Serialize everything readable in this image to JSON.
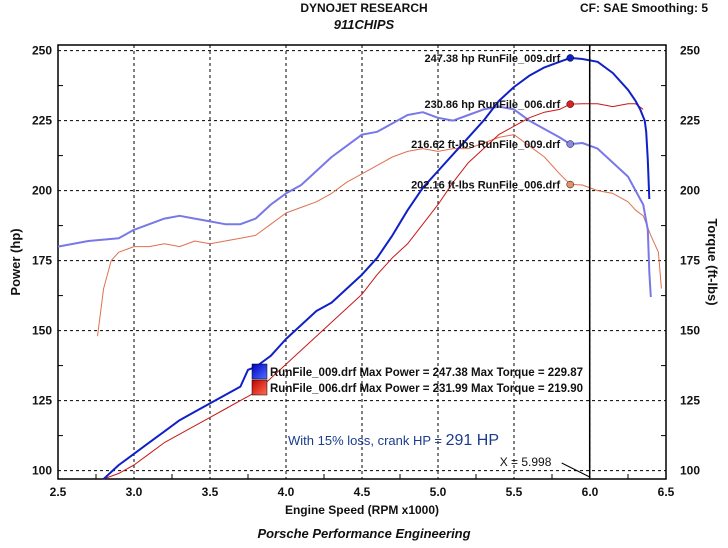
{
  "header": {
    "title": "DYNOJET RESEARCH",
    "subtitle": "911CHIPS",
    "right": "CF: SAE   Smoothing: 5"
  },
  "footer": {
    "text": "Porsche Performance Engineering"
  },
  "chart_data": {
    "type": "line",
    "xlabel": "Engine Speed (RPM x1000)",
    "ylabel_left": "Power (hp)",
    "ylabel_right": "Torque (ft-lbs)",
    "xlim": [
      2.5,
      6.5
    ],
    "ylim": [
      97,
      252
    ],
    "x_ticks": [
      2.5,
      3.0,
      3.5,
      4.0,
      4.5,
      5.0,
      5.5,
      6.0,
      6.5
    ],
    "x_tick_labels": [
      "2.5",
      "3.0",
      "3.5",
      "4.0",
      "4.5",
      "5.0",
      "5.5",
      "6.0",
      "6.5"
    ],
    "y_ticks": [
      100,
      125,
      150,
      175,
      200,
      225,
      250
    ],
    "y_tick_labels": [
      "100",
      "125",
      "150",
      "175",
      "200",
      "225",
      "250"
    ],
    "grid": true,
    "series": [
      {
        "name": "RunFile_009.drf",
        "kind": "power",
        "color": "#1020c8",
        "width": 2,
        "points": [
          [
            2.8,
            97
          ],
          [
            2.9,
            102
          ],
          [
            3.0,
            106
          ],
          [
            3.1,
            110
          ],
          [
            3.2,
            114
          ],
          [
            3.3,
            118
          ],
          [
            3.4,
            121
          ],
          [
            3.5,
            124
          ],
          [
            3.6,
            127
          ],
          [
            3.7,
            130
          ],
          [
            3.75,
            136
          ],
          [
            3.8,
            137
          ],
          [
            3.9,
            141
          ],
          [
            4.0,
            147
          ],
          [
            4.1,
            152
          ],
          [
            4.2,
            157
          ],
          [
            4.3,
            160
          ],
          [
            4.4,
            165
          ],
          [
            4.5,
            170
          ],
          [
            4.6,
            176
          ],
          [
            4.7,
            184
          ],
          [
            4.8,
            193
          ],
          [
            4.9,
            201
          ],
          [
            5.0,
            207
          ],
          [
            5.1,
            213
          ],
          [
            5.2,
            219
          ],
          [
            5.3,
            225
          ],
          [
            5.4,
            232
          ],
          [
            5.5,
            237
          ],
          [
            5.6,
            241
          ],
          [
            5.7,
            244
          ],
          [
            5.8,
            246
          ],
          [
            5.87,
            247.4
          ],
          [
            5.95,
            247
          ],
          [
            6.05,
            246
          ],
          [
            6.15,
            242
          ],
          [
            6.25,
            236
          ],
          [
            6.3,
            232
          ],
          [
            6.33,
            229
          ],
          [
            6.36,
            225
          ],
          [
            6.37,
            221
          ],
          [
            6.38,
            211
          ],
          [
            6.39,
            197
          ]
        ]
      },
      {
        "name": "RunFile_006.drf",
        "kind": "power",
        "color": "#c81818",
        "width": 1,
        "points": [
          [
            2.8,
            97
          ],
          [
            2.9,
            99
          ],
          [
            3.0,
            102
          ],
          [
            3.1,
            106
          ],
          [
            3.2,
            110
          ],
          [
            3.3,
            113
          ],
          [
            3.4,
            116
          ],
          [
            3.5,
            119
          ],
          [
            3.6,
            122
          ],
          [
            3.7,
            125
          ],
          [
            3.8,
            128
          ],
          [
            3.9,
            133
          ],
          [
            4.0,
            138
          ],
          [
            4.1,
            143
          ],
          [
            4.2,
            148
          ],
          [
            4.3,
            153
          ],
          [
            4.4,
            158
          ],
          [
            4.5,
            163
          ],
          [
            4.6,
            170
          ],
          [
            4.7,
            176
          ],
          [
            4.8,
            181
          ],
          [
            4.9,
            188
          ],
          [
            5.0,
            195
          ],
          [
            5.1,
            203
          ],
          [
            5.2,
            210
          ],
          [
            5.3,
            215
          ],
          [
            5.4,
            220
          ],
          [
            5.5,
            223
          ],
          [
            5.6,
            226
          ],
          [
            5.7,
            228
          ],
          [
            5.8,
            229
          ],
          [
            5.87,
            230.9
          ],
          [
            5.95,
            231
          ],
          [
            6.05,
            231
          ],
          [
            6.15,
            230
          ],
          [
            6.25,
            231
          ],
          [
            6.3,
            231
          ],
          [
            6.35,
            229
          ]
        ]
      },
      {
        "name": "RunFile_009.drf",
        "kind": "torque",
        "color": "#7878e8",
        "width": 2,
        "points": [
          [
            2.5,
            180
          ],
          [
            2.7,
            182
          ],
          [
            2.9,
            183
          ],
          [
            3.0,
            186
          ],
          [
            3.1,
            188
          ],
          [
            3.2,
            190
          ],
          [
            3.3,
            191
          ],
          [
            3.4,
            190
          ],
          [
            3.5,
            189
          ],
          [
            3.6,
            188
          ],
          [
            3.7,
            188
          ],
          [
            3.8,
            190
          ],
          [
            3.9,
            195
          ],
          [
            4.0,
            199
          ],
          [
            4.1,
            202
          ],
          [
            4.2,
            207
          ],
          [
            4.3,
            212
          ],
          [
            4.4,
            216
          ],
          [
            4.5,
            220
          ],
          [
            4.6,
            221
          ],
          [
            4.7,
            224
          ],
          [
            4.8,
            227
          ],
          [
            4.9,
            228
          ],
          [
            5.0,
            226
          ],
          [
            5.1,
            225
          ],
          [
            5.2,
            227
          ],
          [
            5.3,
            229
          ],
          [
            5.4,
            230
          ],
          [
            5.5,
            229
          ],
          [
            5.6,
            225
          ],
          [
            5.7,
            222
          ],
          [
            5.8,
            219
          ],
          [
            5.87,
            216.6
          ],
          [
            5.95,
            217
          ],
          [
            6.05,
            215
          ],
          [
            6.15,
            210
          ],
          [
            6.25,
            205
          ],
          [
            6.3,
            200
          ],
          [
            6.35,
            195
          ],
          [
            6.38,
            186
          ],
          [
            6.39,
            171
          ],
          [
            6.4,
            162
          ]
        ]
      },
      {
        "name": "RunFile_006.drf",
        "kind": "torque",
        "color": "#e07050",
        "width": 1,
        "points": [
          [
            2.76,
            148
          ],
          [
            2.8,
            165
          ],
          [
            2.85,
            175
          ],
          [
            2.9,
            178
          ],
          [
            3.0,
            180
          ],
          [
            3.1,
            180
          ],
          [
            3.2,
            181
          ],
          [
            3.3,
            180
          ],
          [
            3.4,
            182
          ],
          [
            3.5,
            181
          ],
          [
            3.6,
            182
          ],
          [
            3.7,
            183
          ],
          [
            3.8,
            184
          ],
          [
            3.9,
            188
          ],
          [
            4.0,
            192
          ],
          [
            4.1,
            194
          ],
          [
            4.2,
            196
          ],
          [
            4.3,
            199
          ],
          [
            4.4,
            203
          ],
          [
            4.5,
            206
          ],
          [
            4.6,
            209
          ],
          [
            4.7,
            212
          ],
          [
            4.8,
            214
          ],
          [
            4.9,
            215
          ],
          [
            5.0,
            214
          ],
          [
            5.1,
            215
          ],
          [
            5.2,
            215
          ],
          [
            5.3,
            217
          ],
          [
            5.4,
            219
          ],
          [
            5.5,
            220
          ],
          [
            5.6,
            216
          ],
          [
            5.7,
            212
          ],
          [
            5.8,
            206
          ],
          [
            5.87,
            202.2
          ],
          [
            5.95,
            202
          ],
          [
            6.05,
            200
          ],
          [
            6.15,
            199
          ],
          [
            6.25,
            196
          ],
          [
            6.3,
            193
          ],
          [
            6.35,
            191
          ],
          [
            6.4,
            184
          ],
          [
            6.45,
            178
          ],
          [
            6.47,
            165
          ]
        ]
      }
    ],
    "annotations": {
      "peak_labels": [
        {
          "text": "247.38 hp RunFile_009.drf",
          "x": 5.87,
          "y": 247.38,
          "marker_color": "#1020c8"
        },
        {
          "text": "230.86 hp RunFile_006.drf",
          "x": 5.87,
          "y": 230.86,
          "marker_color": "#dd2020"
        },
        {
          "text": "216.62 ft-lbs RunFile_009.drf",
          "x": 5.87,
          "y": 216.62,
          "marker_color": "#8888e8"
        },
        {
          "text": "202.16 ft-lbs RunFile_006.drf",
          "x": 5.87,
          "y": 202.16,
          "marker_color": "#e8906a"
        }
      ],
      "legend": [
        {
          "text": "RunFile_009.drf Max Power = 247.38 Max Torque = 229.87",
          "color": "#1a3cf0"
        },
        {
          "text": "RunFile_006.drf Max Power = 231.99 Max Torque = 219.90",
          "color": "#e03020"
        }
      ],
      "crank_note_prefix": "With 15% loss, crank HP = ",
      "crank_note_value": "291 HP",
      "cursor_x_value": 5.998,
      "cursor_label": "X = 5.998"
    }
  }
}
